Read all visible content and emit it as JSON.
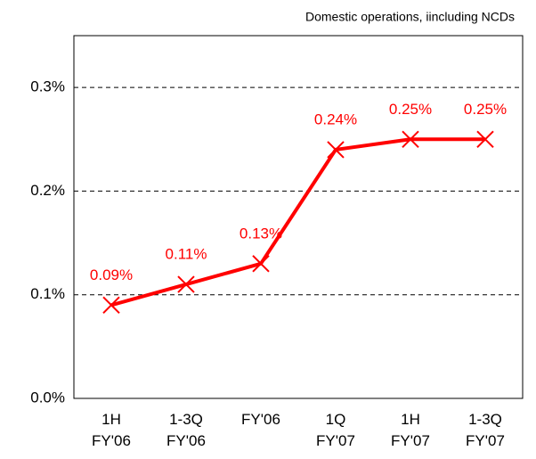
{
  "chart_data": {
    "type": "line",
    "subtitle": "Domestic operations, iincluding NCDs",
    "categories": [
      "1H\nFY'06",
      "1-3Q\nFY'06",
      "FY'06",
      "1Q\nFY'07",
      "1H\nFY'07",
      "1-3Q\nFY'07"
    ],
    "series": [
      {
        "name": "Ratio",
        "color": "#ff0000",
        "values": [
          0.09,
          0.11,
          0.13,
          0.24,
          0.25,
          0.25
        ],
        "value_labels": [
          "0.09%",
          "0.11%",
          "0.13%",
          "0.24%",
          "0.25%",
          "0.25%"
        ]
      }
    ],
    "ylim": [
      0,
      0.35
    ],
    "yticks": [
      {
        "value": 0,
        "label": "0.0%"
      },
      {
        "value": 0.1,
        "label": "0.1%"
      },
      {
        "value": 0.2,
        "label": "0.2%"
      },
      {
        "value": 0.3,
        "label": "0.3%"
      }
    ],
    "grid": true
  }
}
